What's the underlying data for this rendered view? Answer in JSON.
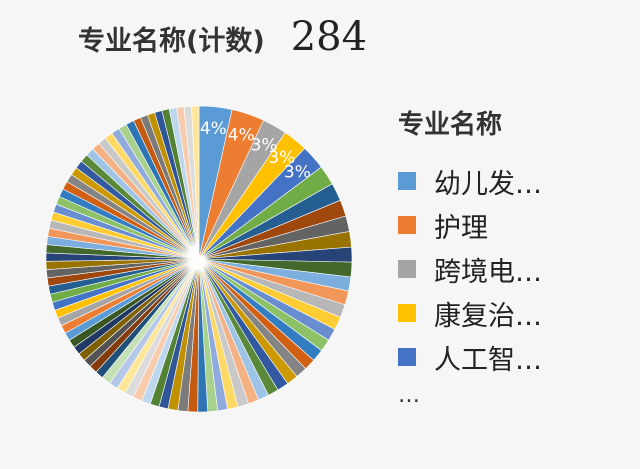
{
  "title": {
    "label": "专业名称(计数)",
    "count": "284"
  },
  "legend": {
    "title": "专业名称",
    "items": [
      {
        "label": "幼儿发…",
        "color": "#5b9bd5"
      },
      {
        "label": "护理",
        "color": "#ed7d31"
      },
      {
        "label": "跨境电…",
        "color": "#a5a5a5"
      },
      {
        "label": "康复治…",
        "color": "#ffc000"
      },
      {
        "label": "人工智…",
        "color": "#4472c4"
      }
    ],
    "more": "…"
  },
  "chart_data": {
    "type": "pie",
    "total": 284,
    "slices": [
      {
        "label": "幼儿发…",
        "percent": 4,
        "color": "#5b9bd5",
        "data_label": "4%"
      },
      {
        "label": "护理",
        "percent": 4,
        "color": "#ed7d31",
        "data_label": "4%"
      },
      {
        "label": "跨境电…",
        "percent": 3,
        "color": "#a5a5a5",
        "data_label": "3%"
      },
      {
        "label": "康复治…",
        "percent": 3,
        "color": "#ffc000",
        "data_label": "3%"
      },
      {
        "label": "人工智…",
        "percent": 3,
        "color": "#4472c4",
        "data_label": "3%"
      },
      {
        "percent": 2.4,
        "color": "#70ad47"
      },
      {
        "percent": 2.2,
        "color": "#255e91"
      },
      {
        "percent": 2.0,
        "color": "#9e480e"
      },
      {
        "percent": 1.9,
        "color": "#636363"
      },
      {
        "percent": 1.9,
        "color": "#997300"
      },
      {
        "percent": 1.8,
        "color": "#264478"
      },
      {
        "percent": 1.8,
        "color": "#43682b"
      },
      {
        "percent": 1.7,
        "color": "#7cafdd"
      },
      {
        "percent": 1.7,
        "color": "#f1975a"
      },
      {
        "percent": 1.6,
        "color": "#b7b7b7"
      },
      {
        "percent": 1.6,
        "color": "#ffcd33"
      },
      {
        "percent": 1.5,
        "color": "#698ed0"
      },
      {
        "percent": 1.5,
        "color": "#8cc168"
      },
      {
        "percent": 1.5,
        "color": "#327dc2"
      },
      {
        "percent": 1.4,
        "color": "#d26012"
      },
      {
        "percent": 1.4,
        "color": "#848484"
      },
      {
        "percent": 1.4,
        "color": "#cc9a00"
      },
      {
        "percent": 1.4,
        "color": "#335aa1"
      },
      {
        "percent": 1.3,
        "color": "#5a8a39"
      },
      {
        "percent": 1.3,
        "color": "#9dc3e6"
      },
      {
        "percent": 1.3,
        "color": "#f4b183"
      },
      {
        "percent": 1.3,
        "color": "#c9c9c9"
      },
      {
        "percent": 1.3,
        "color": "#ffd966"
      },
      {
        "percent": 1.2,
        "color": "#8faadc"
      },
      {
        "percent": 1.2,
        "color": "#a9d18e"
      },
      {
        "percent": 1.2,
        "color": "#2e75b6"
      },
      {
        "percent": 1.2,
        "color": "#c55a11"
      },
      {
        "percent": 1.2,
        "color": "#7b7b7b"
      },
      {
        "percent": 1.2,
        "color": "#bf9000"
      },
      {
        "percent": 1.1,
        "color": "#2f5597"
      },
      {
        "percent": 1.1,
        "color": "#548235"
      },
      {
        "percent": 1.1,
        "color": "#bdd7ee"
      },
      {
        "percent": 1.1,
        "color": "#f8cbad"
      },
      {
        "percent": 1.1,
        "color": "#dbdbdb"
      },
      {
        "percent": 1.1,
        "color": "#ffe699"
      },
      {
        "percent": 1.1,
        "color": "#b4c7e7"
      },
      {
        "percent": 1.1,
        "color": "#c5e0b4"
      },
      {
        "percent": 1.0,
        "color": "#1f4e79"
      },
      {
        "percent": 1.0,
        "color": "#843c0c"
      },
      {
        "percent": 1.0,
        "color": "#525252"
      },
      {
        "percent": 1.0,
        "color": "#7f6000"
      },
      {
        "percent": 1.0,
        "color": "#203864"
      },
      {
        "percent": 1.0,
        "color": "#385723"
      },
      {
        "percent": 1.0,
        "color": "#5b9bd5"
      },
      {
        "percent": 1.0,
        "color": "#ed7d31"
      },
      {
        "percent": 1.0,
        "color": "#a5a5a5"
      },
      {
        "percent": 1.0,
        "color": "#ffc000"
      },
      {
        "percent": 1.0,
        "color": "#4472c4"
      },
      {
        "percent": 1.0,
        "color": "#70ad47"
      },
      {
        "percent": 1.0,
        "color": "#255e91"
      },
      {
        "percent": 1.0,
        "color": "#9e480e"
      },
      {
        "percent": 1.0,
        "color": "#636363"
      },
      {
        "percent": 1.0,
        "color": "#997300"
      },
      {
        "percent": 1.0,
        "color": "#264478"
      },
      {
        "percent": 1.0,
        "color": "#43682b"
      },
      {
        "percent": 1.0,
        "color": "#7cafdd"
      },
      {
        "percent": 1.0,
        "color": "#f1975a"
      },
      {
        "percent": 1.0,
        "color": "#b7b7b7"
      },
      {
        "percent": 1.0,
        "color": "#ffcd33"
      },
      {
        "percent": 1.0,
        "color": "#698ed0"
      },
      {
        "percent": 1.0,
        "color": "#8cc168"
      },
      {
        "percent": 1.0,
        "color": "#327dc2"
      },
      {
        "percent": 1.0,
        "color": "#d26012"
      },
      {
        "percent": 1.0,
        "color": "#848484"
      },
      {
        "percent": 1.0,
        "color": "#cc9a00"
      },
      {
        "percent": 1.0,
        "color": "#335aa1"
      },
      {
        "percent": 1.0,
        "color": "#5a8a39"
      },
      {
        "percent": 1.0,
        "color": "#9dc3e6"
      },
      {
        "percent": 1.0,
        "color": "#f4b183"
      },
      {
        "percent": 1.0,
        "color": "#c9c9c9"
      },
      {
        "percent": 1.0,
        "color": "#ffd966"
      },
      {
        "percent": 1.0,
        "color": "#8faadc"
      },
      {
        "percent": 1.0,
        "color": "#a9d18e"
      },
      {
        "percent": 1.0,
        "color": "#2e75b6"
      },
      {
        "percent": 0.9,
        "color": "#c55a11"
      },
      {
        "percent": 0.9,
        "color": "#7b7b7b"
      },
      {
        "percent": 0.9,
        "color": "#bf9000"
      },
      {
        "percent": 0.9,
        "color": "#2f5597"
      },
      {
        "percent": 0.9,
        "color": "#548235"
      },
      {
        "percent": 0.9,
        "color": "#bdd7ee"
      },
      {
        "percent": 0.9,
        "color": "#f8cbad"
      },
      {
        "percent": 0.9,
        "color": "#dbdbdb"
      },
      {
        "percent": 0.9,
        "color": "#ffe699"
      }
    ]
  }
}
